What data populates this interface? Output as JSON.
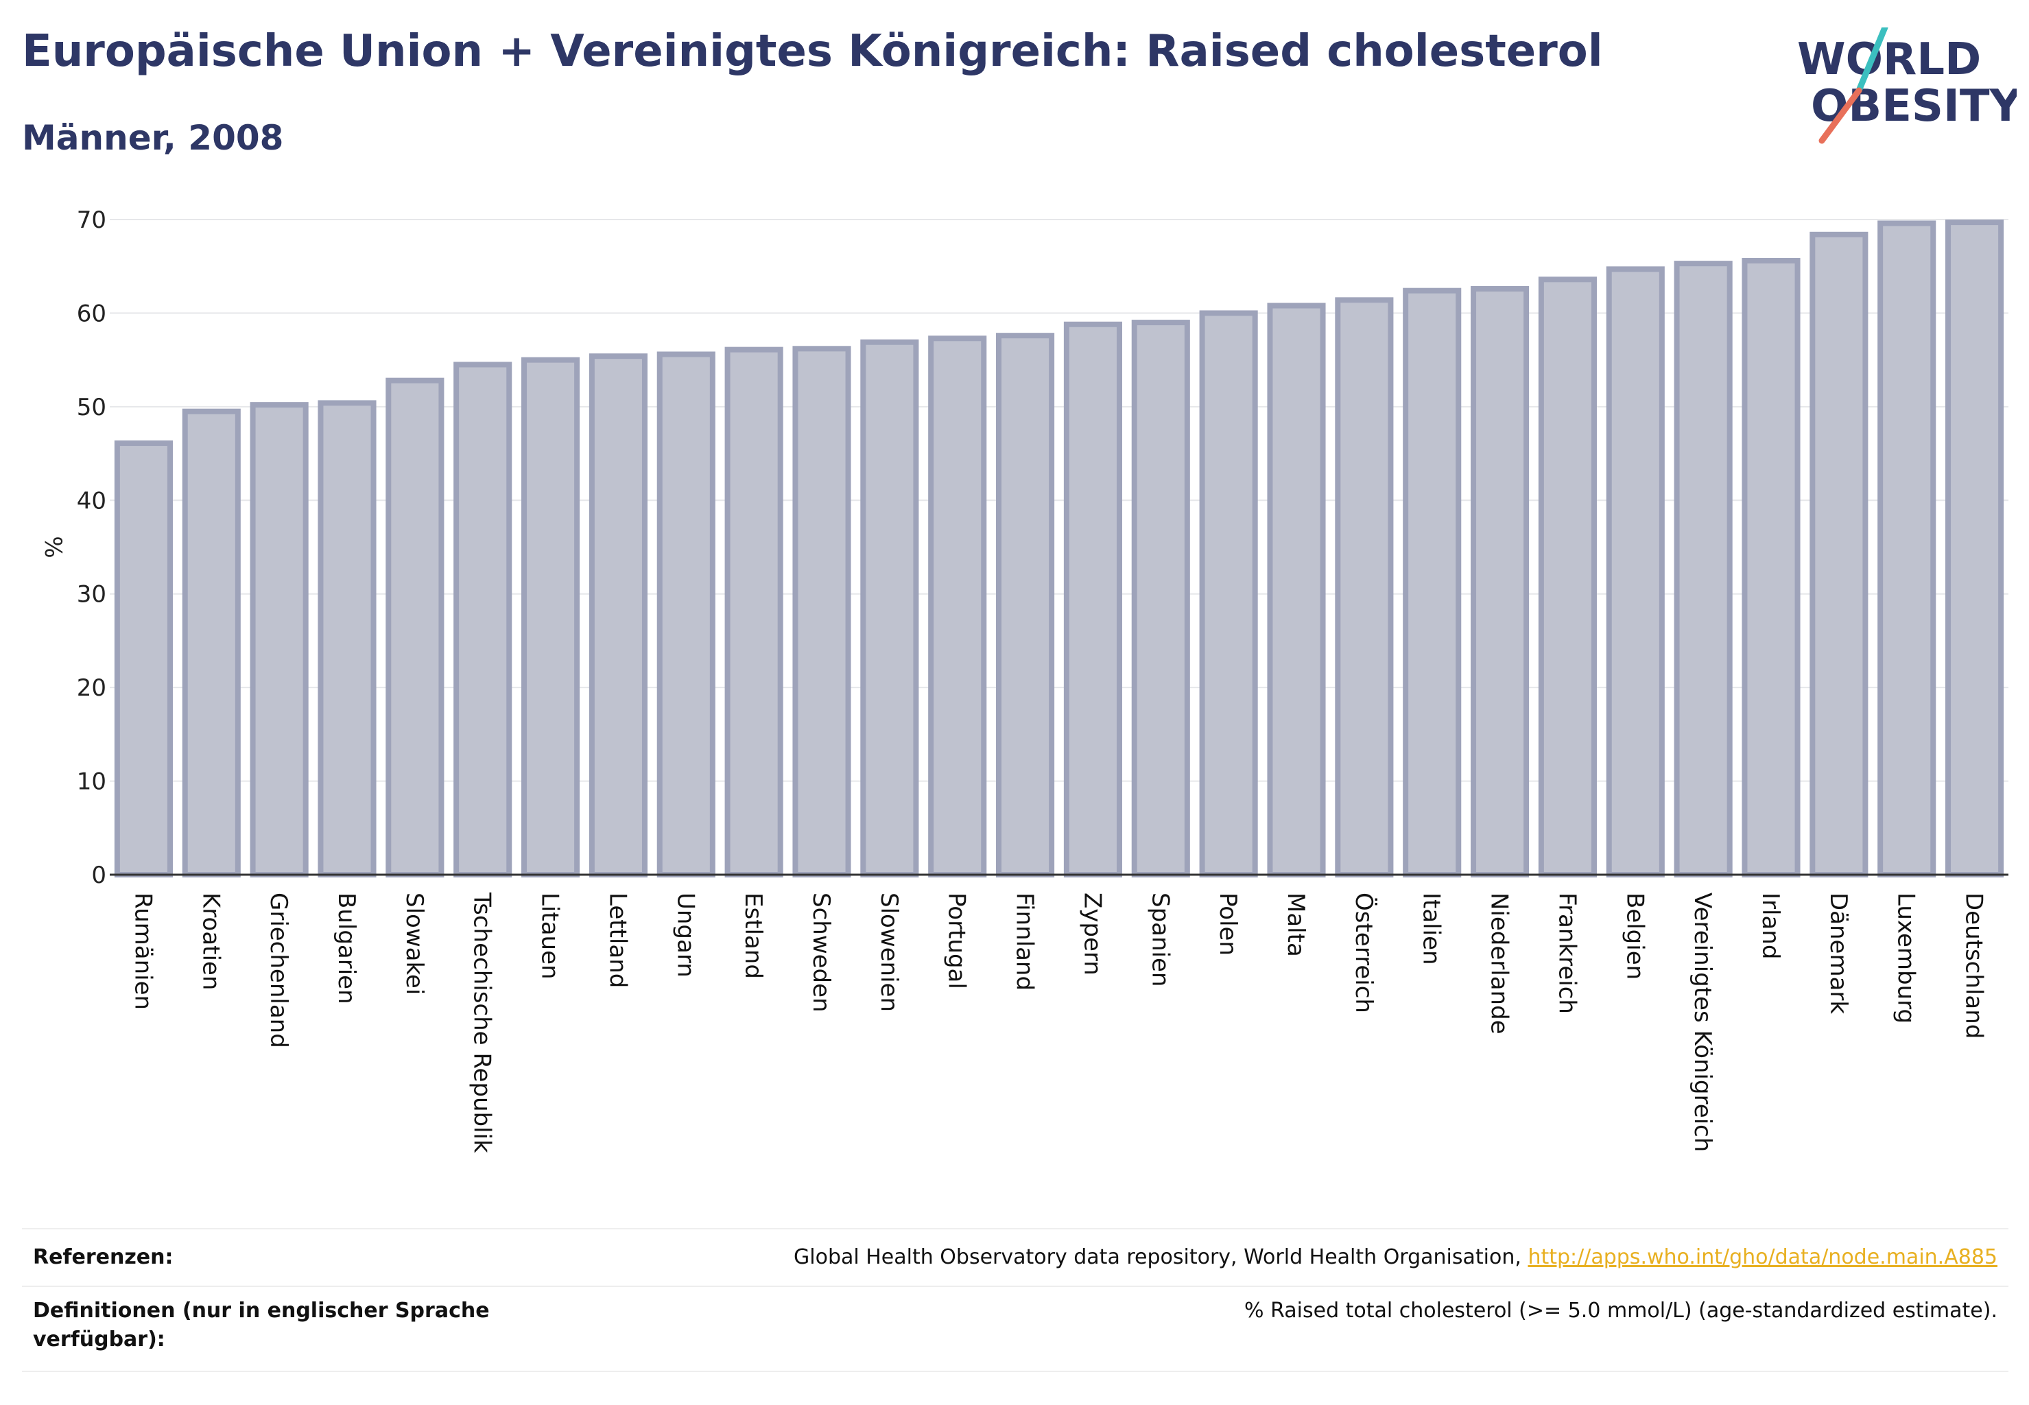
{
  "header": {
    "title": "Europäische Union + Vereinigtes Königreich: Raised cholesterol",
    "subtitle": "Männer, 2008"
  },
  "logo": {
    "line1": "WORLD",
    "line2": "OBESITY",
    "colors": {
      "text": "#2e3766",
      "teal": "#3bbfbf",
      "coral": "#e8705a"
    }
  },
  "chart_data": {
    "type": "bar",
    "title": "Europäische Union + Vereinigtes Königreich: Raised cholesterol",
    "subtitle": "Männer, 2008",
    "xlabel": "",
    "ylabel": "%",
    "ylim": [
      0,
      70
    ],
    "yticks": [
      0,
      10,
      20,
      30,
      40,
      50,
      60,
      70
    ],
    "grid": true,
    "legend": "none",
    "bar_color": "#bfc2cf",
    "bar_edge_color": "#9ea3ba",
    "categories": [
      "Rumänien",
      "Kroatien",
      "Griechenland",
      "Bulgarien",
      "Slowakei",
      "Tschechische Republik",
      "Litauen",
      "Lettland",
      "Ungarn",
      "Estland",
      "Schweden",
      "Slowenien",
      "Portugal",
      "Finnland",
      "Zypern",
      "Spanien",
      "Polen",
      "Malta",
      "Österreich",
      "Italien",
      "Niederlande",
      "Frankreich",
      "Belgien",
      "Vereinigtes Königreich",
      "Irland",
      "Dänemark",
      "Luxemburg",
      "Deutschland"
    ],
    "values": [
      46.1,
      49.5,
      50.2,
      50.4,
      52.8,
      54.5,
      55.0,
      55.4,
      55.6,
      56.1,
      56.2,
      56.9,
      57.3,
      57.6,
      58.8,
      59.0,
      60.0,
      60.8,
      61.4,
      62.4,
      62.6,
      63.6,
      64.7,
      65.3,
      65.6,
      68.4,
      69.6,
      69.7
    ]
  },
  "footer": {
    "references_label": "Referenzen:",
    "references_text": "Global Health Observatory data repository, World Health Organisation, ",
    "references_link": "http://apps.who.int/gho/data/node.main.A885",
    "definitions_label": "Definitionen (nur in englischer Sprache verfügbar):",
    "definitions_text": "% Raised total cholesterol (>= 5.0 mmol/L) (age-standardized estimate)."
  }
}
